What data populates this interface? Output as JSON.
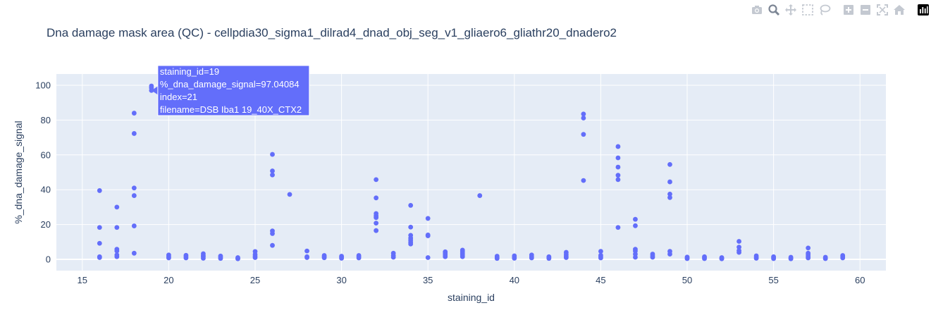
{
  "toolbar": {
    "buttons": [
      {
        "icon": "camera-icon",
        "title": "Download plot as a png"
      },
      {
        "icon": "zoom-icon",
        "title": "Zoom",
        "active": true
      },
      {
        "icon": "pan-icon",
        "title": "Pan"
      },
      {
        "icon": "box-select-icon",
        "title": "Box Select"
      },
      {
        "icon": "lasso-select-icon",
        "title": "Lasso Select"
      },
      {
        "icon": "zoom-in-icon",
        "title": "Zoom in"
      },
      {
        "icon": "zoom-out-icon",
        "title": "Zoom out"
      },
      {
        "icon": "autoscale-icon",
        "title": "Autoscale"
      },
      {
        "icon": "reset-axes-icon",
        "title": "Reset axes"
      },
      {
        "icon": "plotly-logo-icon",
        "title": "Produced with Plotly"
      }
    ]
  },
  "colors": {
    "marker": "#636efa",
    "plot_bg": "#e5ecf6",
    "grid": "#ffffff",
    "text": "#2a3f5f",
    "modebar_icon": "#c4c9d1",
    "modebar_active": "#7c8594"
  },
  "chart_data": {
    "type": "scatter",
    "title": "Dna damage mask area (QC) - cellpdia30_sigma1_dilrad4_dnad_obj_seg_v1_gliaero6_gliathr20_dnadero2",
    "xlabel": "staining_id",
    "ylabel": "%_dna_damage_signal",
    "xlim": [
      13.5,
      61.5
    ],
    "ylim": [
      -6.5,
      106.5
    ],
    "xticks": [
      15,
      20,
      25,
      30,
      35,
      40,
      45,
      50,
      55,
      60
    ],
    "yticks": [
      0,
      20,
      40,
      60,
      80,
      100
    ],
    "grid": true,
    "series": [
      {
        "marker_color": "#636efa",
        "points": [
          [
            16,
            39.5
          ],
          [
            16,
            18.3
          ],
          [
            16,
            9.2
          ],
          [
            16,
            1.5
          ],
          [
            16,
            1.0
          ],
          [
            17,
            30.0
          ],
          [
            17,
            18.3
          ],
          [
            17,
            5.8
          ],
          [
            17,
            4.8
          ],
          [
            17,
            2.5
          ],
          [
            17,
            1.5
          ],
          [
            18,
            84.0
          ],
          [
            18,
            72.3
          ],
          [
            18,
            41.0
          ],
          [
            18,
            36.6
          ],
          [
            18,
            19.2
          ],
          [
            18,
            3.5
          ],
          [
            19,
            99.6
          ],
          [
            19,
            98.5
          ],
          [
            19,
            97.04
          ],
          [
            20,
            2.5
          ],
          [
            20,
            1.8
          ],
          [
            20,
            1.2
          ],
          [
            20,
            0.8
          ],
          [
            21,
            2.3
          ],
          [
            21,
            1.5
          ],
          [
            21,
            0.8
          ],
          [
            22,
            3.2
          ],
          [
            22,
            2.2
          ],
          [
            22,
            1.5
          ],
          [
            22,
            0.6
          ],
          [
            23,
            1.9
          ],
          [
            23,
            1.2
          ],
          [
            23,
            0.5
          ],
          [
            24,
            1.0
          ],
          [
            24,
            0.6
          ],
          [
            24,
            0.3
          ],
          [
            25,
            4.5
          ],
          [
            25,
            2.8
          ],
          [
            25,
            1.8
          ],
          [
            25,
            1.0
          ],
          [
            26,
            60.3
          ],
          [
            26,
            50.8
          ],
          [
            26,
            48.5
          ],
          [
            26,
            16.3
          ],
          [
            26,
            14.8
          ],
          [
            26,
            8.0
          ],
          [
            27,
            37.3
          ],
          [
            28,
            4.8
          ],
          [
            28,
            1.5
          ],
          [
            28,
            1.0
          ],
          [
            29,
            2.2
          ],
          [
            29,
            1.5
          ],
          [
            29,
            0.9
          ],
          [
            30,
            1.8
          ],
          [
            30,
            1.2
          ],
          [
            30,
            0.6
          ],
          [
            31,
            2.2
          ],
          [
            31,
            1.5
          ],
          [
            31,
            0.8
          ],
          [
            32,
            45.8
          ],
          [
            32,
            35.3
          ],
          [
            32,
            26.3
          ],
          [
            32,
            25.0
          ],
          [
            32,
            24.0
          ],
          [
            32,
            20.8
          ],
          [
            32,
            16.5
          ],
          [
            33,
            3.5
          ],
          [
            33,
            2.2
          ],
          [
            33,
            1.2
          ],
          [
            34,
            31.0
          ],
          [
            34,
            18.5
          ],
          [
            34,
            13.8
          ],
          [
            34,
            12.2
          ],
          [
            34,
            11.0
          ],
          [
            34,
            9.8
          ],
          [
            34,
            8.8
          ],
          [
            35,
            23.5
          ],
          [
            35,
            14.0
          ],
          [
            35,
            13.5
          ],
          [
            35,
            1.0
          ],
          [
            36,
            4.3
          ],
          [
            36,
            3.5
          ],
          [
            36,
            2.5
          ],
          [
            36,
            1.5
          ],
          [
            37,
            5.3
          ],
          [
            37,
            4.5
          ],
          [
            37,
            3.5
          ],
          [
            37,
            2.5
          ],
          [
            37,
            1.5
          ],
          [
            38,
            36.6
          ],
          [
            39,
            1.8
          ],
          [
            39,
            1.0
          ],
          [
            39,
            0.5
          ],
          [
            40,
            2.0
          ],
          [
            40,
            1.2
          ],
          [
            40,
            0.6
          ],
          [
            41,
            2.5
          ],
          [
            41,
            1.5
          ],
          [
            41,
            0.8
          ],
          [
            42,
            1.5
          ],
          [
            42,
            1.0
          ],
          [
            42,
            0.5
          ],
          [
            43,
            4.0
          ],
          [
            43,
            2.8
          ],
          [
            43,
            1.8
          ],
          [
            43,
            1.0
          ],
          [
            44,
            83.5
          ],
          [
            44,
            81.2
          ],
          [
            44,
            71.8
          ],
          [
            44,
            45.3
          ],
          [
            45,
            4.6
          ],
          [
            45,
            2.3
          ],
          [
            45,
            1.5
          ],
          [
            45,
            0.8
          ],
          [
            46,
            64.8
          ],
          [
            46,
            58.3
          ],
          [
            46,
            53.0
          ],
          [
            46,
            48.3
          ],
          [
            46,
            45.8
          ],
          [
            46,
            18.3
          ],
          [
            47,
            23.0
          ],
          [
            47,
            19.3
          ],
          [
            47,
            5.8
          ],
          [
            47,
            4.8
          ],
          [
            47,
            3.0
          ],
          [
            47,
            1.2
          ],
          [
            48,
            3.0
          ],
          [
            48,
            2.0
          ],
          [
            48,
            1.2
          ],
          [
            49,
            54.5
          ],
          [
            49,
            44.5
          ],
          [
            49,
            37.5
          ],
          [
            49,
            35.5
          ],
          [
            49,
            4.6
          ],
          [
            49,
            3.0
          ],
          [
            50,
            1.3
          ],
          [
            50,
            0.8
          ],
          [
            50,
            0.4
          ],
          [
            51,
            1.5
          ],
          [
            51,
            0.9
          ],
          [
            51,
            0.4
          ],
          [
            52,
            1.0
          ],
          [
            52,
            0.6
          ],
          [
            52,
            0.3
          ],
          [
            53,
            10.3
          ],
          [
            53,
            7.0
          ],
          [
            53,
            5.0
          ],
          [
            53,
            4.0
          ],
          [
            54,
            2.0
          ],
          [
            54,
            1.2
          ],
          [
            54,
            0.6
          ],
          [
            55,
            1.5
          ],
          [
            55,
            0.9
          ],
          [
            55,
            0.4
          ],
          [
            56,
            1.2
          ],
          [
            56,
            0.7
          ],
          [
            56,
            0.3
          ],
          [
            57,
            6.5
          ],
          [
            57,
            3.5
          ],
          [
            57,
            2.5
          ],
          [
            57,
            1.5
          ],
          [
            57,
            0.8
          ],
          [
            58,
            1.2
          ],
          [
            58,
            0.8
          ],
          [
            58,
            0.4
          ],
          [
            59,
            2.2
          ],
          [
            59,
            1.5
          ],
          [
            59,
            0.8
          ]
        ]
      }
    ],
    "hover": {
      "x": 19,
      "y": 97.04084,
      "lines": [
        "staining_id=19",
        "%_dna_damage_signal=97.04084",
        "index=21",
        "filename=DSB Iba1 19_40X_CTX2"
      ]
    }
  }
}
